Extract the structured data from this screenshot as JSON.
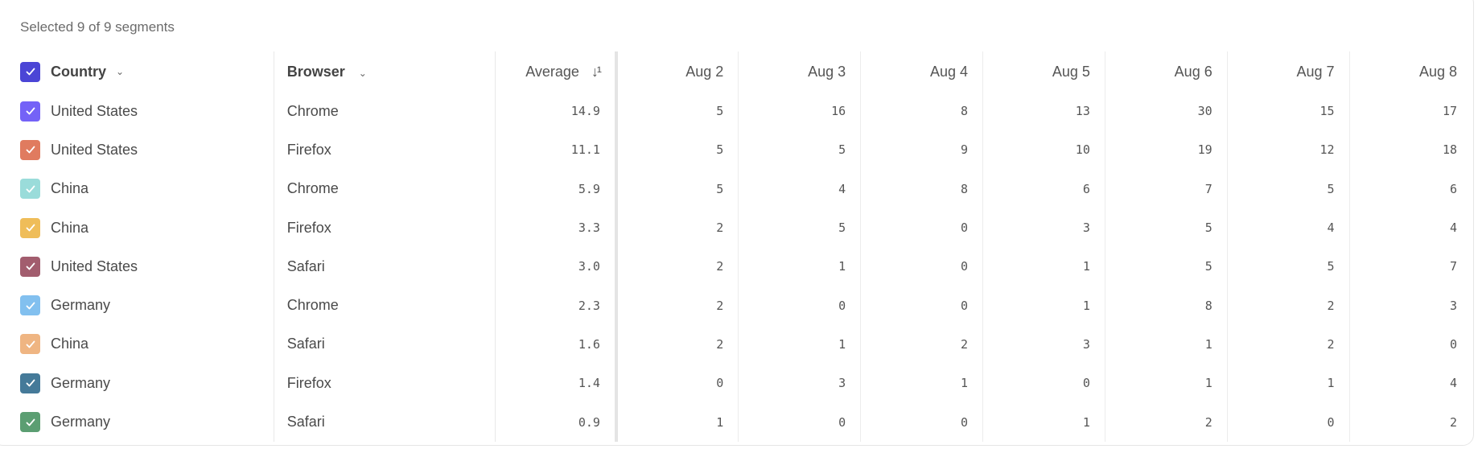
{
  "caption": "Selected 9 of 9 segments",
  "header": {
    "country": "Country",
    "browser": "Browser",
    "average": "Average",
    "select_all_color": "#4b45d6",
    "dates": [
      "Aug 2",
      "Aug 3",
      "Aug 4",
      "Aug 5",
      "Aug 6",
      "Aug 7",
      "Aug 8"
    ]
  },
  "rows": [
    {
      "country": "United States",
      "browser": "Chrome",
      "average": "14.9",
      "color": "#7462f7",
      "values": [
        "5",
        "16",
        "8",
        "13",
        "30",
        "15",
        "17"
      ]
    },
    {
      "country": "United States",
      "browser": "Firefox",
      "average": "11.1",
      "color": "#e07b5f",
      "values": [
        "5",
        "5",
        "9",
        "10",
        "19",
        "12",
        "18"
      ]
    },
    {
      "country": "China",
      "browser": "Chrome",
      "average": "5.9",
      "color": "#9adcda",
      "values": [
        "5",
        "4",
        "8",
        "6",
        "7",
        "5",
        "6"
      ]
    },
    {
      "country": "China",
      "browser": "Firefox",
      "average": "3.3",
      "color": "#efbd59",
      "values": [
        "2",
        "5",
        "0",
        "3",
        "5",
        "4",
        "4"
      ]
    },
    {
      "country": "United States",
      "browser": "Safari",
      "average": "3.0",
      "color": "#a25d6e",
      "values": [
        "2",
        "1",
        "0",
        "1",
        "5",
        "5",
        "7"
      ]
    },
    {
      "country": "Germany",
      "browser": "Chrome",
      "average": "2.3",
      "color": "#82c0ef",
      "values": [
        "2",
        "0",
        "0",
        "1",
        "8",
        "2",
        "3"
      ]
    },
    {
      "country": "China",
      "browser": "Safari",
      "average": "1.6",
      "color": "#efb582",
      "values": [
        "2",
        "1",
        "2",
        "3",
        "1",
        "2",
        "0"
      ]
    },
    {
      "country": "Germany",
      "browser": "Firefox",
      "average": "1.4",
      "color": "#457a99",
      "values": [
        "0",
        "3",
        "1",
        "0",
        "1",
        "1",
        "4"
      ]
    },
    {
      "country": "Germany",
      "browser": "Safari",
      "average": "0.9",
      "color": "#5b9e72",
      "values": [
        "1",
        "0",
        "0",
        "1",
        "2",
        "0",
        "2"
      ]
    }
  ]
}
